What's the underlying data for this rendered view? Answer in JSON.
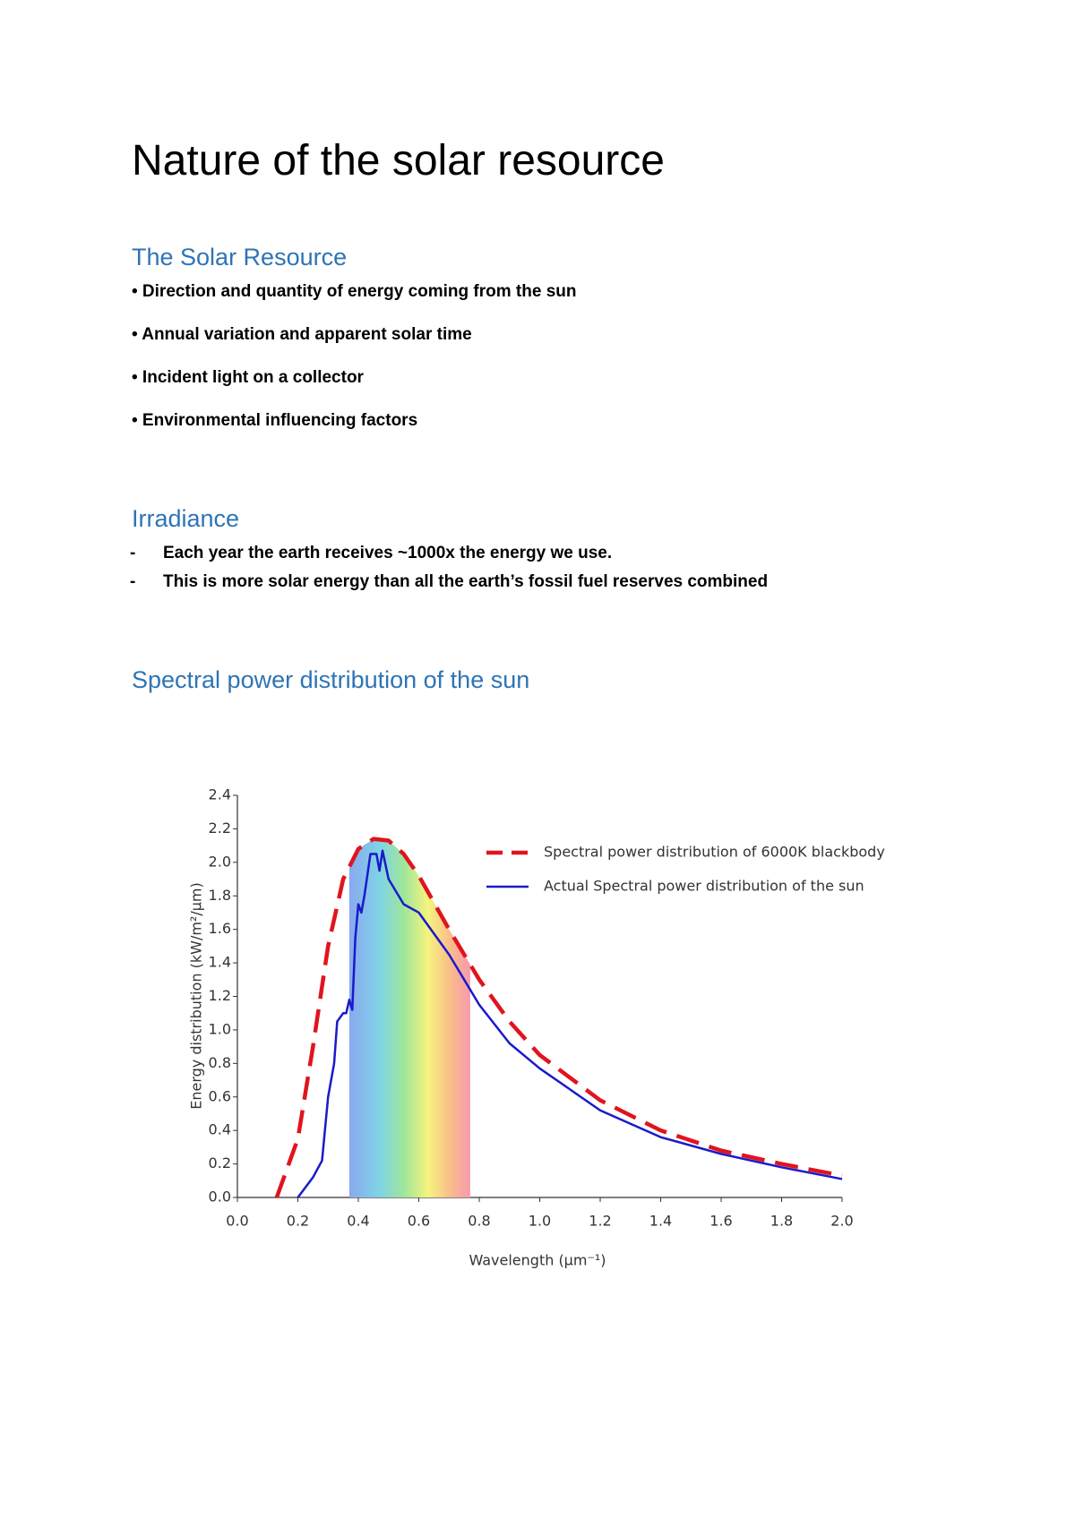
{
  "title": "Nature of the solar resource",
  "sections": [
    {
      "heading": "The Solar Resource",
      "items": [
        "• Direction and quantity of energy coming from the sun",
        "• Annual variation and apparent solar time",
        "• Incident light on a collector",
        "• Environmental influencing factors"
      ]
    },
    {
      "heading": "Irradiance",
      "items": [
        {
          "marker": "-",
          "text": "Each year the earth receives ~1000x the energy we use."
        },
        {
          "marker": "-",
          "text": "This is more solar energy than all the earth’s fossil fuel reserves combined"
        }
      ]
    },
    {
      "heading": "Spectral power distribution of the sun"
    }
  ],
  "chart_data": {
    "type": "line",
    "x_label": "Wavelength (μm⁻¹)",
    "y_label": "Energy distribution (kW/m²/μm)",
    "xlim": [
      0,
      2.0
    ],
    "ylim": [
      0,
      2.4
    ],
    "xticks": [
      {
        "value": 0,
        "label": "0.0"
      },
      {
        "value": 0.2,
        "label": "0.2"
      },
      {
        "value": 0.4,
        "label": "0.4"
      },
      {
        "value": 0.6,
        "label": "0.6"
      },
      {
        "value": 0.8,
        "label": "0.8"
      },
      {
        "value": 1.0,
        "label": "1.0"
      },
      {
        "value": 1.2,
        "label": "1.2"
      },
      {
        "value": 1.4,
        "label": "1.4"
      },
      {
        "value": 1.6,
        "label": "1.6"
      },
      {
        "value": 1.8,
        "label": "1.8"
      },
      {
        "value": 2.0,
        "label": "2.0"
      }
    ],
    "yticks": [
      {
        "value": 0,
        "label": "0.0"
      },
      {
        "value": 0.2,
        "label": "0.2"
      },
      {
        "value": 0.4,
        "label": "0.4"
      },
      {
        "value": 0.6,
        "label": "0.6"
      },
      {
        "value": 0.8,
        "label": "0.8"
      },
      {
        "value": 1.0,
        "label": "1.0"
      },
      {
        "value": 1.2,
        "label": "1.2"
      },
      {
        "value": 1.4,
        "label": "1.4"
      },
      {
        "value": 1.6,
        "label": "1.6"
      },
      {
        "value": 1.8,
        "label": "1.8"
      },
      {
        "value": 2.0,
        "label": "2.0"
      },
      {
        "value": 2.2,
        "label": "2.2"
      },
      {
        "value": 2.4,
        "label": "2.4"
      }
    ],
    "visible_band": [
      0.37,
      0.77
    ],
    "series": [
      {
        "name": "Spectral power distribution of 6000K blackbody",
        "color": "#e0141e",
        "dashed": true,
        "x": [
          0.13,
          0.2,
          0.25,
          0.3,
          0.35,
          0.4,
          0.45,
          0.5,
          0.55,
          0.6,
          0.7,
          0.8,
          0.9,
          1.0,
          1.2,
          1.4,
          1.6,
          1.8,
          2.0
        ],
        "values": [
          0,
          0.35,
          0.9,
          1.5,
          1.9,
          2.08,
          2.14,
          2.13,
          2.05,
          1.92,
          1.6,
          1.3,
          1.05,
          0.85,
          0.58,
          0.4,
          0.28,
          0.2,
          0.13
        ]
      },
      {
        "name": "Actual Spectral power distribution  of the sun",
        "color": "#1a1acc",
        "dashed": false,
        "x": [
          0.2,
          0.25,
          0.28,
          0.3,
          0.32,
          0.33,
          0.35,
          0.36,
          0.37,
          0.38,
          0.39,
          0.4,
          0.41,
          0.42,
          0.44,
          0.46,
          0.47,
          0.48,
          0.5,
          0.55,
          0.58,
          0.6,
          0.7,
          0.8,
          0.9,
          1.0,
          1.2,
          1.4,
          1.6,
          1.8,
          2.0
        ],
        "values": [
          0,
          0.12,
          0.22,
          0.6,
          0.8,
          1.05,
          1.1,
          1.1,
          1.18,
          1.12,
          1.55,
          1.75,
          1.7,
          1.8,
          2.05,
          2.05,
          1.95,
          2.07,
          1.9,
          1.75,
          1.72,
          1.7,
          1.45,
          1.15,
          0.92,
          0.77,
          0.52,
          0.36,
          0.26,
          0.18,
          0.11
        ]
      }
    ]
  }
}
